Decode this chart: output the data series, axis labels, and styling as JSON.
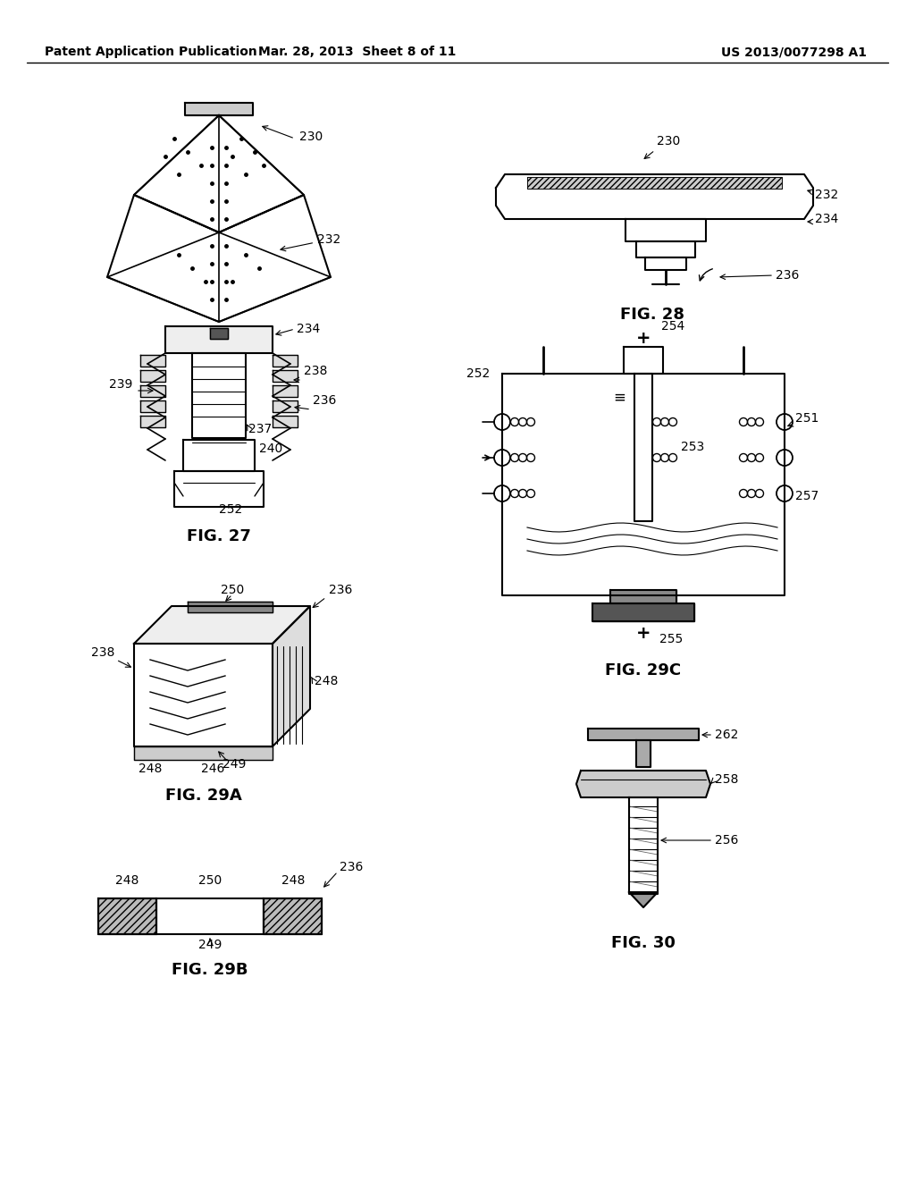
{
  "bg_color": "#ffffff",
  "line_color": "#000000",
  "header_left": "Patent Application Publication",
  "header_mid": "Mar. 28, 2013  Sheet 8 of 11",
  "header_right": "US 2013/0077298 A1",
  "fig27_label": "FIG. 27",
  "fig28_label": "FIG. 28",
  "fig29a_label": "FIG. 29A",
  "fig29b_label": "FIG. 29B",
  "fig29c_label": "FIG. 29C",
  "fig30_label": "FIG. 30"
}
